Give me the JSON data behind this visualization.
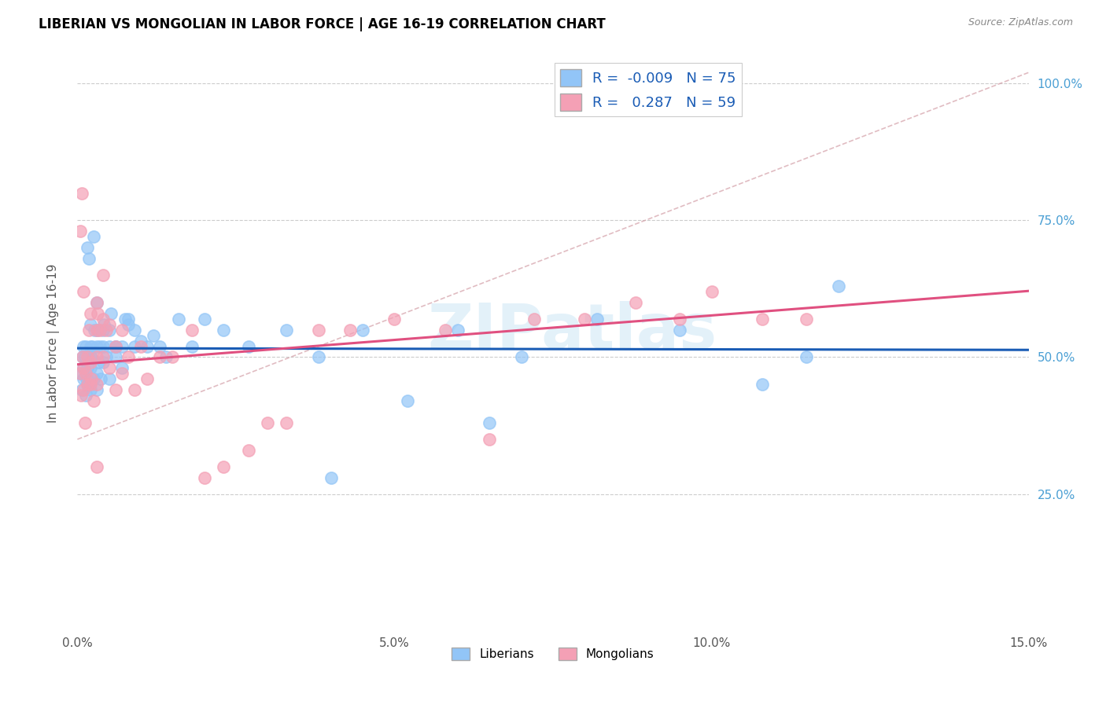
{
  "title": "LIBERIAN VS MONGOLIAN IN LABOR FORCE | AGE 16-19 CORRELATION CHART",
  "source": "Source: ZipAtlas.com",
  "ylabel": "In Labor Force | Age 16-19",
  "xlim": [
    0.0,
    0.15
  ],
  "ylim": [
    0.0,
    1.05
  ],
  "yticks": [
    0.25,
    0.5,
    0.75,
    1.0
  ],
  "ytick_labels": [
    "25.0%",
    "50.0%",
    "75.0%",
    "100.0%"
  ],
  "xticks": [
    0.0,
    0.05,
    0.1,
    0.15
  ],
  "xtick_labels": [
    "0.0%",
    "5.0%",
    "10.0%",
    "15.0%"
  ],
  "liberian_R": -0.009,
  "liberian_N": 75,
  "mongolian_R": 0.287,
  "mongolian_N": 59,
  "liberian_color": "#92c5f7",
  "mongolian_color": "#f4a0b5",
  "liberian_line_color": "#1a5cb5",
  "mongolian_line_color": "#e05080",
  "ref_line_color": "#ddaaaa",
  "watermark_text": "ZIPatlas",
  "liberian_x": [
    0.0005,
    0.0007,
    0.0008,
    0.0009,
    0.001,
    0.001,
    0.0012,
    0.0013,
    0.0013,
    0.0014,
    0.0015,
    0.0015,
    0.0016,
    0.0017,
    0.0018,
    0.002,
    0.002,
    0.002,
    0.002,
    0.002,
    0.0022,
    0.0023,
    0.0025,
    0.0025,
    0.0027,
    0.003,
    0.003,
    0.003,
    0.003,
    0.0032,
    0.0033,
    0.0035,
    0.0037,
    0.004,
    0.004,
    0.004,
    0.0042,
    0.0045,
    0.005,
    0.005,
    0.005,
    0.0053,
    0.006,
    0.006,
    0.006,
    0.007,
    0.007,
    0.0075,
    0.008,
    0.008,
    0.009,
    0.009,
    0.01,
    0.011,
    0.012,
    0.013,
    0.014,
    0.016,
    0.018,
    0.02,
    0.023,
    0.027,
    0.033,
    0.038,
    0.045,
    0.052,
    0.06,
    0.07,
    0.082,
    0.095,
    0.108,
    0.115,
    0.12,
    0.065,
    0.04
  ],
  "liberian_y": [
    0.47,
    0.44,
    0.5,
    0.52,
    0.48,
    0.46,
    0.5,
    0.43,
    0.52,
    0.46,
    0.7,
    0.48,
    0.45,
    0.5,
    0.68,
    0.52,
    0.56,
    0.48,
    0.44,
    0.5,
    0.5,
    0.52,
    0.46,
    0.72,
    0.55,
    0.52,
    0.6,
    0.47,
    0.44,
    0.55,
    0.49,
    0.52,
    0.46,
    0.55,
    0.49,
    0.52,
    0.56,
    0.5,
    0.55,
    0.52,
    0.46,
    0.58,
    0.52,
    0.5,
    0.52,
    0.52,
    0.48,
    0.57,
    0.57,
    0.56,
    0.55,
    0.52,
    0.53,
    0.52,
    0.54,
    0.52,
    0.5,
    0.57,
    0.52,
    0.57,
    0.55,
    0.52,
    0.55,
    0.5,
    0.55,
    0.42,
    0.55,
    0.5,
    0.57,
    0.55,
    0.45,
    0.5,
    0.63,
    0.38,
    0.28
  ],
  "mongolian_x": [
    0.0004,
    0.0006,
    0.0008,
    0.001,
    0.001,
    0.001,
    0.0012,
    0.0013,
    0.0015,
    0.0016,
    0.0018,
    0.002,
    0.002,
    0.002,
    0.0022,
    0.0025,
    0.003,
    0.003,
    0.003,
    0.003,
    0.0032,
    0.0035,
    0.004,
    0.004,
    0.004,
    0.0045,
    0.005,
    0.005,
    0.006,
    0.006,
    0.007,
    0.007,
    0.008,
    0.009,
    0.01,
    0.011,
    0.013,
    0.015,
    0.018,
    0.02,
    0.023,
    0.027,
    0.03,
    0.033,
    0.038,
    0.043,
    0.05,
    0.058,
    0.065,
    0.072,
    0.08,
    0.088,
    0.095,
    0.1,
    0.108,
    0.115,
    0.003,
    0.0005,
    0.0007
  ],
  "mongolian_y": [
    0.47,
    0.43,
    0.5,
    0.44,
    0.48,
    0.62,
    0.38,
    0.47,
    0.45,
    0.5,
    0.55,
    0.58,
    0.45,
    0.49,
    0.46,
    0.42,
    0.6,
    0.55,
    0.5,
    0.45,
    0.58,
    0.55,
    0.65,
    0.57,
    0.5,
    0.55,
    0.56,
    0.48,
    0.44,
    0.52,
    0.47,
    0.55,
    0.5,
    0.44,
    0.52,
    0.46,
    0.5,
    0.5,
    0.55,
    0.28,
    0.3,
    0.33,
    0.38,
    0.38,
    0.55,
    0.55,
    0.57,
    0.55,
    0.35,
    0.57,
    0.57,
    0.6,
    0.57,
    0.62,
    0.57,
    0.57,
    0.3,
    0.73,
    0.8
  ],
  "liberian_line_y0": 0.5,
  "liberian_line_y1": 0.497,
  "mongolian_line_y0": 0.37,
  "mongolian_line_y1": 0.6
}
